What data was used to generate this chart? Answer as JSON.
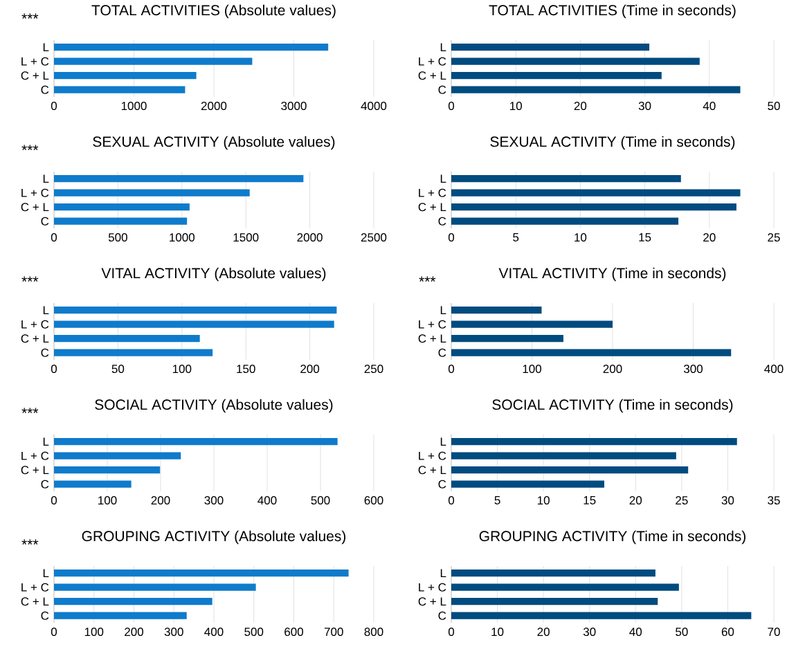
{
  "chart_data": [
    {
      "type": "bar",
      "orientation": "horizontal",
      "title": "TOTAL ACTIVITIES (Absolute values)",
      "annotations": [
        "***"
      ],
      "categories": [
        "L",
        "L + C",
        "C + L",
        "C"
      ],
      "values": [
        3430,
        2480,
        1780,
        1640
      ],
      "color": "#0f7bcb",
      "xlim": [
        0,
        4000
      ],
      "xticks": [
        0,
        1000,
        2000,
        3000,
        4000
      ],
      "grid": "x"
    },
    {
      "type": "bar",
      "orientation": "horizontal",
      "title": "TOTAL ACTIVITIES (Time in seconds)",
      "categories": [
        "L",
        "L + C",
        "C + L",
        "C"
      ],
      "values": [
        30.7,
        38.5,
        32.6,
        44.8
      ],
      "color": "#004b7f",
      "xlim": [
        0,
        50
      ],
      "xticks": [
        0,
        10,
        20,
        30,
        40,
        50
      ],
      "grid": "x"
    },
    {
      "type": "bar",
      "orientation": "horizontal",
      "title": "SEXUAL ACTIVITY (Absolute values)",
      "annotations": [
        "***"
      ],
      "categories": [
        "L",
        "L + C",
        "C + L",
        "C"
      ],
      "values": [
        1950,
        1530,
        1060,
        1040
      ],
      "color": "#0f7bcb",
      "xlim": [
        0,
        2500
      ],
      "xticks": [
        0,
        500,
        1000,
        1500,
        2000,
        2500
      ],
      "grid": "x"
    },
    {
      "type": "bar",
      "orientation": "horizontal",
      "title": "SEXUAL ACTIVITY (Time in seconds)",
      "categories": [
        "L",
        "L + C",
        "C + L",
        "C"
      ],
      "values": [
        17.8,
        22.4,
        22.1,
        17.6
      ],
      "color": "#004b7f",
      "xlim": [
        0,
        25
      ],
      "xticks": [
        0,
        5,
        10,
        15,
        20,
        25
      ],
      "grid": "x"
    },
    {
      "type": "bar",
      "orientation": "horizontal",
      "title": "VITAL ACTIVITY (Absolute values)",
      "annotations": [
        "***"
      ],
      "categories": [
        "L",
        "L + C",
        "C + L",
        "C"
      ],
      "values": [
        221,
        219,
        114,
        124
      ],
      "color": "#0f7bcb",
      "xlim": [
        0,
        250
      ],
      "xticks": [
        0,
        50,
        100,
        150,
        200,
        250
      ],
      "grid": "x"
    },
    {
      "type": "bar",
      "orientation": "horizontal",
      "title": "VITAL ACTIVITY (Time in seconds)",
      "annotations": [
        "***"
      ],
      "categories": [
        "L",
        "L + C",
        "C + L",
        "C"
      ],
      "values": [
        112,
        200,
        139,
        347
      ],
      "color": "#004b7f",
      "xlim": [
        0,
        400
      ],
      "xticks": [
        0,
        100,
        200,
        300,
        400
      ],
      "grid": "x"
    },
    {
      "type": "bar",
      "orientation": "horizontal",
      "title": "SOCIAL ACTIVITY (Absolute values)",
      "annotations": [
        "***"
      ],
      "categories": [
        "L",
        "L + C",
        "C + L",
        "C"
      ],
      "values": [
        532,
        238,
        199,
        145
      ],
      "color": "#0f7bcb",
      "xlim": [
        0,
        600
      ],
      "xticks": [
        0,
        100,
        200,
        300,
        400,
        500,
        600
      ],
      "grid": "x"
    },
    {
      "type": "bar",
      "orientation": "horizontal",
      "title": "SOCIAL ACTIVITY (Time in seconds)",
      "categories": [
        "L",
        "L + C",
        "C + L",
        "C"
      ],
      "values": [
        31.0,
        24.4,
        25.7,
        16.6
      ],
      "color": "#004b7f",
      "xlim": [
        0,
        35
      ],
      "xticks": [
        0,
        5,
        10,
        15,
        20,
        25,
        30,
        35
      ],
      "grid": "x"
    },
    {
      "type": "bar",
      "orientation": "horizontal",
      "title": "GROUPING ACTIVITY (Absolute values)",
      "annotations": [
        "***"
      ],
      "categories": [
        "L",
        "L + C",
        "C + L",
        "C"
      ],
      "values": [
        737,
        505,
        396,
        332
      ],
      "color": "#0f7bcb",
      "xlim": [
        0,
        800
      ],
      "xticks": [
        0,
        100,
        200,
        300,
        400,
        500,
        600,
        700,
        800
      ],
      "grid": "x"
    },
    {
      "type": "bar",
      "orientation": "horizontal",
      "title": "GROUPING ACTIVITY (Time in seconds)",
      "categories": [
        "L",
        "L + C",
        "C + L",
        "C"
      ],
      "values": [
        44.3,
        49.4,
        44.8,
        65.1
      ],
      "color": "#004b7f",
      "xlim": [
        0,
        70
      ],
      "xticks": [
        0,
        10,
        20,
        30,
        40,
        50,
        60,
        70
      ],
      "grid": "x"
    }
  ]
}
